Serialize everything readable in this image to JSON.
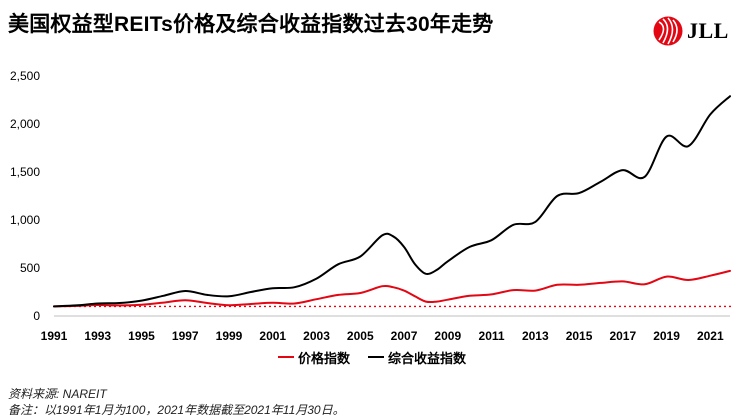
{
  "title": "美国权益型REITs价格及综合收益指数过去30年走势",
  "logo": {
    "text": "JLL",
    "icon": "jll-logo-icon",
    "color": "#e30613"
  },
  "source": "资料来源: NAREIT",
  "note": "备注：以1991年1月为100，2021年数据截至2021年11月30日。",
  "legend": [
    {
      "label": "价格指数",
      "color": "#e30613"
    },
    {
      "label": "综合收益指数",
      "color": "#000000"
    }
  ],
  "chart_data": {
    "type": "line",
    "x_ticks": [
      "1991",
      "1993",
      "1995",
      "1997",
      "1999",
      "2001",
      "2003",
      "2005",
      "2007",
      "2009",
      "2011",
      "2013",
      "2015",
      "2017",
      "2019",
      "2021"
    ],
    "y_ticks": [
      "0",
      "500",
      "1,000",
      "1,500",
      "2,000",
      "2,500"
    ],
    "ylim": [
      0,
      2500
    ],
    "xlim": [
      1991,
      2021.9
    ],
    "reference_line": {
      "value": 100,
      "style": "dotted",
      "color": "#e30613"
    },
    "series": [
      {
        "name": "价格指数",
        "color": "#e30613",
        "x": [
          1991,
          1992,
          1993,
          1994,
          1995,
          1996,
          1997,
          1998,
          1999,
          2000,
          2001,
          2002,
          2003,
          2004,
          2005,
          2006,
          2006.5,
          2007,
          2007.5,
          2008,
          2008.5,
          2009,
          2010,
          2011,
          2012,
          2013,
          2014,
          2015,
          2016,
          2017,
          2018,
          2019,
          2020,
          2021,
          2021.9
        ],
        "y": [
          100,
          105,
          115,
          110,
          118,
          140,
          165,
          135,
          112,
          125,
          138,
          130,
          175,
          220,
          240,
          310,
          300,
          265,
          205,
          150,
          150,
          170,
          210,
          225,
          270,
          265,
          325,
          325,
          345,
          360,
          330,
          410,
          375,
          420,
          470
        ]
      },
      {
        "name": "综合收益指数",
        "color": "#000000",
        "x": [
          1991,
          1992,
          1993,
          1994,
          1995,
          1996,
          1997,
          1998,
          1999,
          2000,
          2001,
          2002,
          2003,
          2004,
          2005,
          2006,
          2006.5,
          2007,
          2007.5,
          2008,
          2008.5,
          2009,
          2010,
          2011,
          2012,
          2013,
          2014,
          2015,
          2016,
          2017,
          2018,
          2019,
          2020,
          2021,
          2021.9
        ],
        "y": [
          100,
          110,
          130,
          135,
          160,
          210,
          260,
          220,
          205,
          250,
          290,
          300,
          390,
          540,
          620,
          840,
          830,
          720,
          540,
          440,
          480,
          570,
          720,
          790,
          950,
          980,
          1250,
          1280,
          1400,
          1520,
          1450,
          1870,
          1770,
          2100,
          2290
        ]
      }
    ]
  }
}
